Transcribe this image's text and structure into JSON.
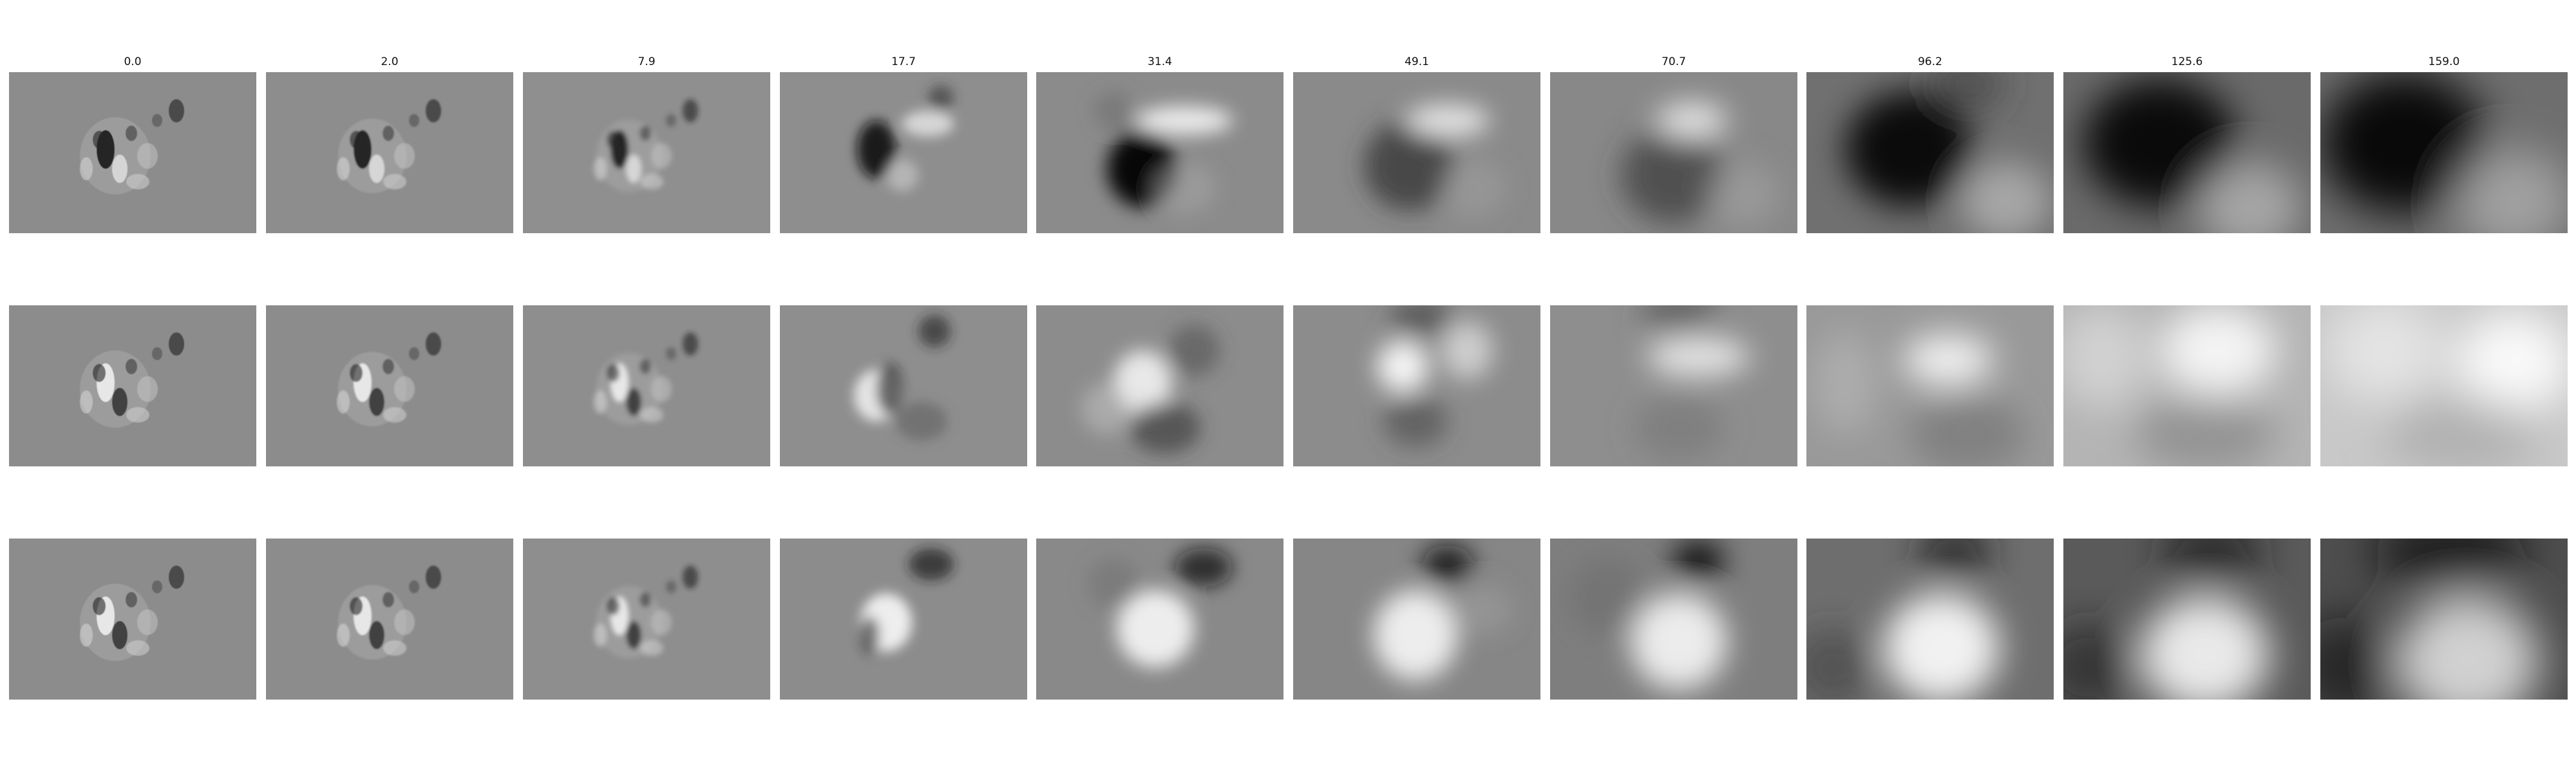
{
  "column_titles": [
    "0.0",
    "2.0",
    "7.9",
    "17.7",
    "31.4",
    "49.1",
    "70.7",
    "96.2",
    "125.6",
    "159.0"
  ],
  "colormap": "gray",
  "background": "#ffffff"
}
